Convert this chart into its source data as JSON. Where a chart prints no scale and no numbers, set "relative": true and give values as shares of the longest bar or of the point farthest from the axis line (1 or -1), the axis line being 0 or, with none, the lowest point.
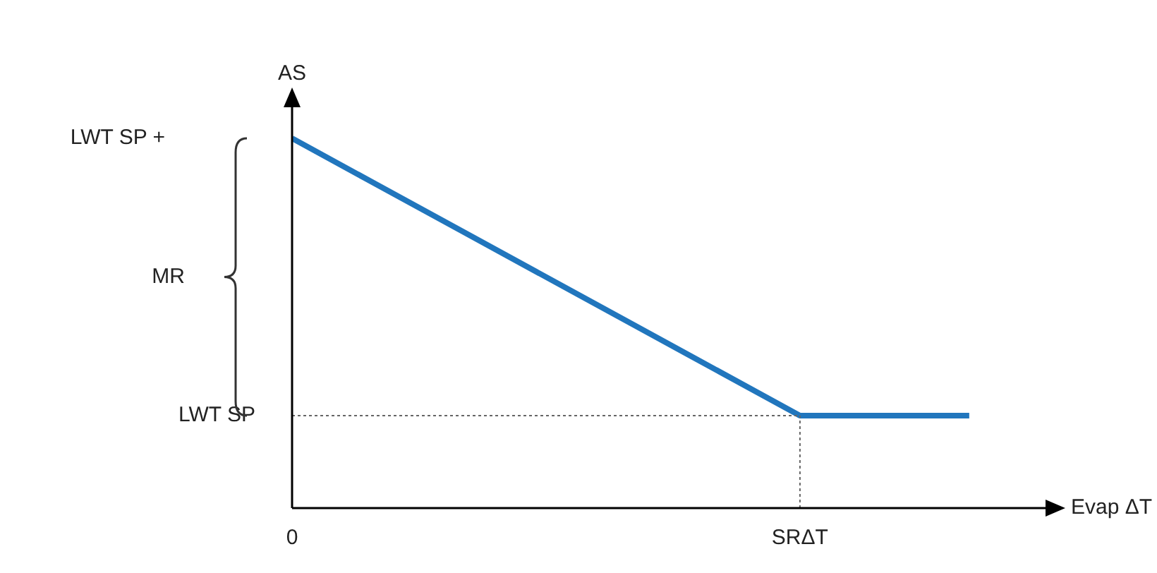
{
  "chart_data": {
    "type": "line",
    "relative": true,
    "xlabel": "Evap ΔT",
    "ylabel": "AS",
    "categories": [
      "0",
      null,
      null,
      "SRΔT",
      null
    ],
    "values": [
      1,
      0.75,
      0.5,
      0.25,
      0.25
    ],
    "color": "#2176bd",
    "ref_lines": [
      {
        "axis": "y",
        "value": 0.25,
        "label": "LWT SP",
        "line_style": "dotted",
        "color": "#666666"
      },
      {
        "axis": "x",
        "value": "SRΔT",
        "line_style": "dotted",
        "color": "#666666"
      }
    ],
    "annotations": [
      "MR",
      "LWT SP +"
    ],
    "marker": "none",
    "line_style": "solid",
    "legend": false
  }
}
